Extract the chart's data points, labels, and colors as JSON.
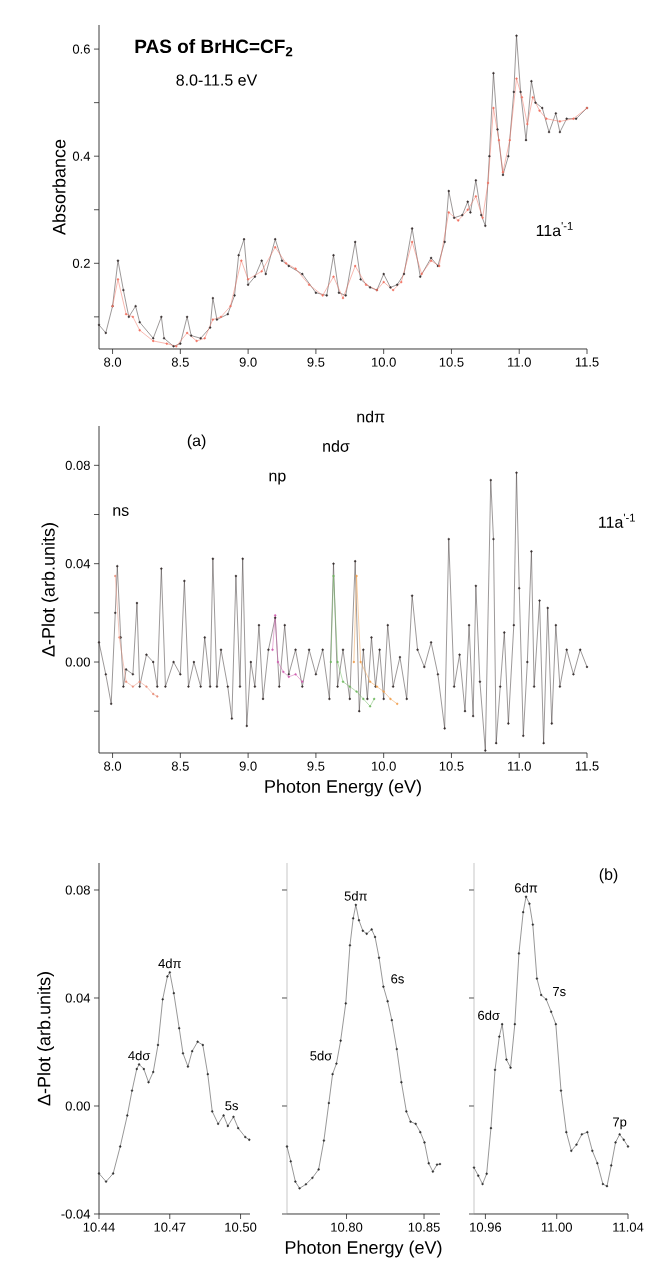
{
  "chart_data": [
    {
      "type": "line",
      "title": "PAS of BrHC=CF$_{2}$",
      "subtitle": "8.0-11.5 eV",
      "ylabel": "Absorbance",
      "marker": "circle",
      "xlim": [
        7.9,
        11.5
      ],
      "ylim": [
        0.04,
        0.645
      ],
      "xticks": [
        {
          "value": 8,
          "label": "8.0"
        },
        8.5,
        {
          "value": 9,
          "label": "9.0"
        },
        9.5,
        {
          "value": 10,
          "label": "10.0"
        },
        10.5,
        {
          "value": 11,
          "label": "11.0"
        },
        11.5
      ],
      "yticks": [
        {
          "value": 0.1,
          "label": null
        },
        0.2,
        {
          "value": 0.3,
          "label": null
        },
        0.4,
        {
          "value": 0.5,
          "label": null
        },
        0.6
      ],
      "annotations": [
        "11a$^{'-1}$"
      ],
      "series": [
        {
          "color": "#3a3232",
          "x": [
            7.9,
            7.95,
            8.0,
            8.04,
            8.08,
            8.12,
            8.17,
            8.2,
            8.3,
            8.36,
            8.38,
            8.45,
            8.5,
            8.55,
            8.58,
            8.65,
            8.72,
            8.74,
            8.77,
            8.85,
            8.9,
            8.93,
            8.97,
            9.0,
            9.05,
            9.1,
            9.13,
            9.2,
            9.25,
            9.3,
            9.4,
            9.5,
            9.58,
            9.63,
            9.67,
            9.72,
            9.79,
            9.83,
            9.9,
            9.95,
            10.0,
            10.05,
            10.1,
            10.15,
            10.21,
            10.27,
            10.35,
            10.4,
            10.45,
            10.48,
            10.52,
            10.58,
            10.62,
            10.64,
            10.68,
            10.72,
            10.75,
            10.78,
            10.81,
            10.84,
            10.88,
            10.92,
            10.96,
            10.98,
            11.01,
            11.05,
            11.09,
            11.12,
            11.17,
            11.22,
            11.27,
            11.3,
            11.35,
            11.42,
            11.5
          ],
          "values": [
            0.085,
            0.07,
            0.12,
            0.205,
            0.15,
            0.1,
            0.12,
            0.09,
            0.06,
            0.1,
            0.06,
            0.045,
            0.05,
            0.1,
            0.065,
            0.06,
            0.08,
            0.135,
            0.095,
            0.105,
            0.14,
            0.215,
            0.245,
            0.16,
            0.175,
            0.205,
            0.18,
            0.245,
            0.205,
            0.195,
            0.18,
            0.145,
            0.14,
            0.215,
            0.145,
            0.14,
            0.24,
            0.17,
            0.155,
            0.15,
            0.18,
            0.155,
            0.16,
            0.18,
            0.265,
            0.175,
            0.21,
            0.195,
            0.24,
            0.335,
            0.285,
            0.29,
            0.315,
            0.295,
            0.355,
            0.29,
            0.27,
            0.4,
            0.555,
            0.45,
            0.365,
            0.4,
            0.52,
            0.625,
            0.52,
            0.43,
            0.54,
            0.5,
            0.49,
            0.445,
            0.48,
            0.445,
            0.47,
            0.47,
            0.49
          ]
        },
        {
          "color": "#f07363",
          "x": [
            8.0,
            8.04,
            8.1,
            8.15,
            8.2,
            8.3,
            8.4,
            8.47,
            8.55,
            8.62,
            8.68,
            8.74,
            8.8,
            8.87,
            8.95,
            9.0,
            9.1,
            9.2,
            9.28,
            9.35,
            9.45,
            9.55,
            9.63,
            9.7,
            9.79,
            9.87,
            9.95,
            10.0,
            10.07,
            10.13,
            10.21,
            10.28,
            10.35,
            10.41,
            10.48,
            10.55,
            10.62,
            10.68,
            10.73,
            10.77,
            10.81,
            10.85,
            10.88,
            10.93,
            10.98,
            11.02,
            11.06,
            11.1,
            11.15,
            11.2,
            11.3,
            11.4,
            11.5
          ],
          "values": [
            0.12,
            0.17,
            0.105,
            0.1,
            0.075,
            0.055,
            0.05,
            0.045,
            0.07,
            0.055,
            0.06,
            0.095,
            0.1,
            0.12,
            0.205,
            0.17,
            0.185,
            0.23,
            0.2,
            0.19,
            0.16,
            0.14,
            0.175,
            0.135,
            0.195,
            0.16,
            0.15,
            0.165,
            0.15,
            0.165,
            0.24,
            0.18,
            0.205,
            0.195,
            0.295,
            0.28,
            0.3,
            0.325,
            0.285,
            0.35,
            0.49,
            0.43,
            0.37,
            0.43,
            0.545,
            0.51,
            0.46,
            0.51,
            0.485,
            0.47,
            0.465,
            0.47,
            0.49
          ]
        }
      ]
    },
    {
      "type": "line",
      "xlabel": "Photon Energy (eV)",
      "ylabel": "Δ-Plot (arb.units)",
      "marker": "circle",
      "xlim": [
        7.9,
        11.5
      ],
      "ylim": [
        -0.037,
        0.096
      ],
      "xticks": [
        {
          "value": 8,
          "label": "8.0"
        },
        8.5,
        {
          "value": 9,
          "label": "9.0"
        },
        9.5,
        {
          "value": 10,
          "label": "10.0"
        },
        10.5,
        {
          "value": 11,
          "label": "11.0"
        },
        11.5
      ],
      "yticks": [
        {
          "value": -0.02,
          "label": null
        },
        {
          "value": 0,
          "label": "0.00"
        },
        {
          "value": 0.02,
          "label": null
        },
        0.04,
        {
          "value": 0.06,
          "label": null
        },
        0.08
      ],
      "annotations": [
        "(a)",
        "11a$^{'-1}$",
        "ns",
        "np",
        "ndσ",
        "ndπ"
      ],
      "series": [
        {
          "color": "#3a3232",
          "x": [
            7.9,
            7.95,
            7.99,
            8.02,
            8.035,
            8.06,
            8.08,
            8.1,
            8.15,
            8.18,
            8.2,
            8.25,
            8.3,
            8.33,
            8.36,
            8.39,
            8.45,
            8.5,
            8.53,
            8.56,
            8.6,
            8.65,
            8.68,
            8.72,
            8.74,
            8.77,
            8.8,
            8.85,
            8.88,
            8.91,
            8.94,
            8.96,
            8.99,
            9.02,
            9.05,
            9.08,
            9.11,
            9.15,
            9.2,
            9.23,
            9.27,
            9.3,
            9.35,
            9.4,
            9.45,
            9.5,
            9.55,
            9.6,
            9.63,
            9.66,
            9.7,
            9.75,
            9.79,
            9.82,
            9.85,
            9.88,
            9.91,
            9.94,
            9.97,
            10.0,
            10.03,
            10.07,
            10.12,
            10.17,
            10.21,
            10.25,
            10.3,
            10.35,
            10.4,
            10.45,
            10.48,
            10.52,
            10.56,
            10.6,
            10.63,
            10.66,
            10.68,
            10.71,
            10.75,
            10.79,
            10.81,
            10.83,
            10.86,
            10.89,
            10.92,
            10.96,
            10.98,
            11.0,
            11.03,
            11.06,
            11.09,
            11.11,
            11.15,
            11.18,
            11.21,
            11.24,
            11.27,
            11.3,
            11.35,
            11.4,
            11.45,
            11.5
          ],
          "values": [
            0.008,
            -0.005,
            -0.017,
            0.02,
            0.039,
            0.01,
            -0.01,
            -0.003,
            -0.005,
            0.024,
            -0.01,
            0.003,
            0.0,
            -0.01,
            0.038,
            -0.01,
            0.0,
            -0.005,
            0.033,
            -0.01,
            0.0,
            -0.01,
            0.01,
            -0.01,
            0.042,
            -0.01,
            0.005,
            -0.01,
            -0.023,
            0.035,
            -0.01,
            0.042,
            -0.026,
            0.0,
            -0.01,
            0.015,
            -0.015,
            0.005,
            0.018,
            -0.01,
            0.015,
            -0.005,
            0.005,
            -0.01,
            0.005,
            -0.005,
            0.005,
            -0.015,
            0.04,
            -0.01,
            0.005,
            -0.015,
            0.041,
            -0.02,
            0.005,
            -0.015,
            0.01,
            -0.01,
            0.005,
            -0.015,
            0.015,
            -0.01,
            0.002,
            -0.015,
            0.027,
            0.005,
            -0.002,
            0.008,
            -0.005,
            -0.027,
            0.05,
            -0.01,
            0.003,
            -0.02,
            0.015,
            -0.022,
            0.031,
            -0.008,
            -0.036,
            0.074,
            0.05,
            -0.033,
            -0.01,
            0.012,
            -0.025,
            0.015,
            0.077,
            0.03,
            -0.03,
            0.0,
            0.045,
            -0.01,
            0.025,
            -0.033,
            0.022,
            -0.025,
            0.015,
            -0.01,
            0.005,
            -0.005,
            0.005,
            -0.002
          ]
        },
        {
          "color": "#e8907c",
          "x": [
            8.02,
            8.05,
            8.1,
            8.15,
            8.2,
            8.25,
            8.3,
            8.33
          ],
          "values": [
            0.035,
            0.01,
            -0.008,
            -0.01,
            -0.008,
            -0.01,
            -0.013,
            -0.014
          ]
        },
        {
          "color": "#d060b0",
          "x": [
            9.18,
            9.2,
            9.22,
            9.26,
            9.3,
            9.35,
            9.4
          ],
          "values": [
            0.005,
            0.019,
            0.0,
            -0.004,
            -0.006,
            -0.005,
            -0.008
          ]
        },
        {
          "color": "#70b860",
          "x": [
            9.61,
            9.63,
            9.66,
            9.7,
            9.75,
            9.8,
            9.85,
            9.9,
            9.93
          ],
          "values": [
            0.0,
            0.035,
            0.0,
            -0.008,
            -0.01,
            -0.012,
            -0.015,
            -0.018,
            -0.015
          ]
        },
        {
          "color": "#f0a050",
          "x": [
            9.78,
            9.8,
            9.83,
            9.9,
            9.95,
            10.0,
            10.05,
            10.1
          ],
          "values": [
            0.0,
            0.035,
            0.0,
            -0.008,
            -0.01,
            -0.012,
            -0.015,
            -0.017
          ]
        }
      ]
    },
    {
      "type": "line",
      "ylabel": "Δ-Plot (arb.units)",
      "marker": "circle",
      "xlim": [
        10.44,
        10.504
      ],
      "ylim": [
        -0.04,
        0.09
      ],
      "xticks": [
        10.44,
        10.47,
        {
          "value": 10.5,
          "label": "10.50"
        }
      ],
      "yticks": [
        -0.04,
        {
          "value": 0,
          "label": "0.00"
        },
        0.04,
        0.08
      ],
      "annotations": [
        {
          "text": "4dσ",
          "x": 10.457,
          "y": 0.0154
        },
        {
          "text": "4dπ",
          "x": 10.47,
          "y": 0.0495
        },
        {
          "text": "5s",
          "x": 10.4928,
          "y": -0.0035
        }
      ],
      "series": [
        {
          "color": "#303030",
          "x": [
            10.44,
            10.443,
            10.446,
            10.449,
            10.452,
            10.454,
            10.456,
            10.457,
            10.459,
            10.461,
            10.463,
            10.465,
            10.467,
            10.469,
            10.47,
            10.4717,
            10.474,
            10.4756,
            10.4777,
            10.4795,
            10.4818,
            10.484,
            10.4861,
            10.488,
            10.4905,
            10.4928,
            10.4946,
            10.497,
            10.499,
            10.502,
            10.5037
          ],
          "values": [
            -0.025,
            -0.028,
            -0.025,
            -0.015,
            -0.0035,
            0.0057,
            0.0137,
            0.0154,
            0.0137,
            0.0088,
            0.0126,
            0.0226,
            0.0395,
            0.048,
            0.0495,
            0.0418,
            0.0288,
            0.0195,
            0.0146,
            0.0203,
            0.0238,
            0.0226,
            0.0118,
            -0.002,
            -0.0066,
            -0.0035,
            -0.0074,
            -0.004,
            -0.0082,
            -0.0115,
            -0.0125
          ]
        }
      ]
    },
    {
      "type": "line",
      "xlabel": "Photon Energy (eV)",
      "marker": "circle",
      "tick_labels": "x",
      "xlim": [
        10.7616,
        10.8603
      ],
      "ylim": [
        -0.04,
        0.09
      ],
      "yticks": [
        {
          "value": -0.04,
          "label": null
        },
        {
          "value": 0,
          "label": null
        },
        {
          "value": 0.04,
          "label": null
        },
        {
          "value": 0.08,
          "label": null
        }
      ],
      "xticks": [
        {
          "value": 10.8,
          "label": "10.80"
        },
        10.85
      ],
      "annotations": [
        {
          "text": "5dσ",
          "x": 10.7935,
          "y": 0.0157
        },
        {
          "text": "5dπ",
          "x": 10.806,
          "y": 0.0745
        },
        {
          "text": "6s",
          "x": 10.8238,
          "y": 0.0442
        }
      ],
      "series": [
        {
          "color": "#303030",
          "x": [
            10.7616,
            10.764,
            10.767,
            10.7697,
            10.7738,
            10.778,
            10.782,
            10.7854,
            10.7886,
            10.791,
            10.7935,
            10.7962,
            10.7995,
            10.8022,
            10.8043,
            10.806,
            10.808,
            10.8105,
            10.813,
            10.8162,
            10.8184,
            10.821,
            10.8238,
            10.8265,
            10.8292,
            10.8324,
            10.8354,
            10.8386,
            10.8413,
            10.8446,
            10.8476,
            10.8503,
            10.853,
            10.8557,
            10.8584,
            10.8603
          ],
          "values": [
            -0.015,
            -0.0205,
            -0.028,
            -0.0305,
            -0.029,
            -0.0266,
            -0.0235,
            -0.0128,
            0.0011,
            0.0118,
            0.0157,
            0.0242,
            0.038,
            0.0595,
            0.0695,
            0.0745,
            0.0688,
            0.0649,
            0.0638,
            0.0654,
            0.0626,
            0.0549,
            0.0442,
            0.0388,
            0.0318,
            0.0211,
            0.0088,
            -0.002,
            -0.0058,
            -0.0066,
            -0.0097,
            -0.0135,
            -0.0212,
            -0.0243,
            -0.0217,
            -0.0215
          ]
        }
      ]
    },
    {
      "type": "line",
      "marker": "circle",
      "tick_labels": "x",
      "xlim": [
        10.9536,
        11.04
      ],
      "ylim": [
        -0.04,
        0.09
      ],
      "yticks": [
        {
          "value": -0.04,
          "label": null
        },
        {
          "value": 0,
          "label": null
        },
        {
          "value": 0.04,
          "label": null
        },
        {
          "value": 0.08,
          "label": null
        }
      ],
      "xticks": [
        10.96,
        {
          "value": 11,
          "label": "11.00"
        },
        11.04
      ],
      "annotations": [
        "(b)",
        {
          "text": "6dσ",
          "x": 10.9694,
          "y": 0.0303
        },
        {
          "text": "6dπ",
          "x": 10.9828,
          "y": 0.0775
        },
        {
          "text": "7s",
          "x": 10.9941,
          "y": 0.0395
        },
        {
          "text": "7p",
          "x": 11.0353,
          "y": -0.0105
        }
      ],
      "series": [
        {
          "color": "#303030",
          "x": [
            10.9536,
            10.956,
            10.9584,
            10.9607,
            10.9631,
            10.9654,
            10.9678,
            10.9694,
            10.9718,
            10.9741,
            10.9765,
            10.9788,
            10.9812,
            10.9828,
            10.9847,
            10.9866,
            10.9889,
            10.9913,
            10.9941,
            10.9969,
            10.9995,
            11.0024,
            11.0054,
            11.0082,
            11.0111,
            11.0141,
            11.0172,
            11.02,
            11.0228,
            11.0259,
            11.0282,
            11.0306,
            11.033,
            11.0353,
            11.0376,
            11.04
          ],
          "values": [
            -0.0228,
            -0.0258,
            -0.0289,
            -0.0251,
            -0.0082,
            0.0134,
            0.0257,
            0.0303,
            0.0172,
            0.0142,
            0.0303,
            0.0565,
            0.0718,
            0.0775,
            0.0749,
            0.0672,
            0.0472,
            0.0411,
            0.0395,
            0.0349,
            0.0303,
            0.0057,
            -0.0097,
            -0.0166,
            -0.0143,
            -0.0105,
            -0.0097,
            -0.0166,
            -0.0212,
            -0.0289,
            -0.0297,
            -0.022,
            -0.0135,
            -0.0105,
            -0.0125,
            -0.015
          ]
        }
      ]
    }
  ]
}
